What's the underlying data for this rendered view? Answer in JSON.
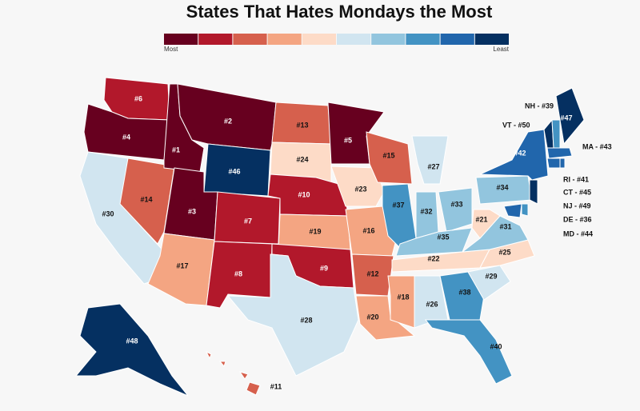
{
  "title": "States That Hates Mondays the Most",
  "legend": {
    "colors": [
      "#67001f",
      "#b2182b",
      "#d6604d",
      "#f4a582",
      "#fddbc7",
      "#d1e5f0",
      "#92c5de",
      "#4393c3",
      "#2166ac",
      "#053061"
    ],
    "low_label": "Most",
    "high_label": "Least"
  },
  "states": [
    {
      "label": "#6",
      "color": "#b2182b"
    },
    {
      "label": "#4",
      "color": "#67001f"
    },
    {
      "label": "#30",
      "color": "#d1e5f0"
    },
    {
      "label": "#14",
      "color": "#d6604d"
    },
    {
      "label": "#1",
      "color": "#67001f"
    },
    {
      "label": "#2",
      "color": "#67001f"
    },
    {
      "label": "#46",
      "color": "#053061"
    },
    {
      "label": "#3",
      "color": "#67001f"
    },
    {
      "label": "#17",
      "color": "#f4a582"
    },
    {
      "label": "#7",
      "color": "#b2182b"
    },
    {
      "label": "#8",
      "color": "#b2182b"
    },
    {
      "label": "#13",
      "color": "#d6604d"
    },
    {
      "label": "#24",
      "color": "#fddbc7"
    },
    {
      "label": "#10",
      "color": "#b2182b"
    },
    {
      "label": "#19",
      "color": "#f4a582"
    },
    {
      "label": "#9",
      "color": "#b2182b"
    },
    {
      "label": "#28",
      "color": "#d1e5f0"
    },
    {
      "label": "#5",
      "color": "#67001f"
    },
    {
      "label": "#23",
      "color": "#fddbc7"
    },
    {
      "label": "#16",
      "color": "#f4a582"
    },
    {
      "label": "#12",
      "color": "#d6604d"
    },
    {
      "label": "#20",
      "color": "#f4a582"
    },
    {
      "label": "#15",
      "color": "#d6604d"
    },
    {
      "label": "#37",
      "color": "#4393c3"
    },
    {
      "label": "#27",
      "color": "#d1e5f0"
    },
    {
      "label": "#32",
      "color": "#92c5de"
    },
    {
      "label": "#33",
      "color": "#92c5de"
    },
    {
      "label": "#35",
      "color": "#92c5de"
    },
    {
      "label": "#22",
      "color": "#fddbc7"
    },
    {
      "label": "#18",
      "color": "#f4a582"
    },
    {
      "label": "#26",
      "color": "#d1e5f0"
    },
    {
      "label": "#38",
      "color": "#4393c3"
    },
    {
      "label": "#40",
      "color": "#4393c3"
    },
    {
      "label": "#29",
      "color": "#d1e5f0"
    },
    {
      "label": "#25",
      "color": "#fddbc7"
    },
    {
      "label": "#31",
      "color": "#92c5de"
    },
    {
      "label": "#21",
      "color": "#fddbc7"
    },
    {
      "label": "#34",
      "color": "#92c5de"
    },
    {
      "label": "#42",
      "color": "#2166ac"
    },
    {
      "label": "#47",
      "color": "#053061"
    },
    {
      "label": "#48",
      "color": "#053061"
    },
    {
      "label": "#11",
      "color": "#d6604d"
    },
    {
      "label": "VT - #50",
      "color": "#053061"
    },
    {
      "label": "NH - #39",
      "color": "#4393c3"
    },
    {
      "label": "MA - #43",
      "color": "#2166ac"
    },
    {
      "label": "RI - #41",
      "color": "#2166ac"
    },
    {
      "label": "CT - #45",
      "color": "#2166ac"
    },
    {
      "label": "NJ - #49",
      "color": "#053061"
    },
    {
      "label": "DE - #36",
      "color": "#4393c3"
    },
    {
      "label": "MD - #44",
      "color": "#2166ac"
    }
  ]
}
